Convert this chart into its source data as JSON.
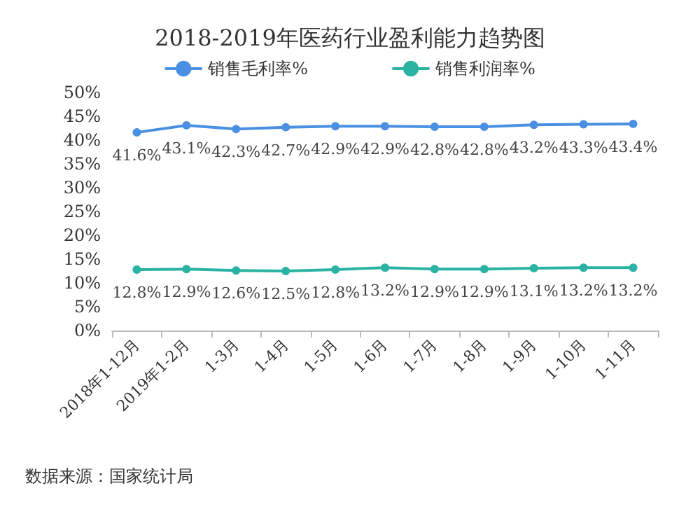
{
  "chart_data": {
    "type": "line",
    "title": "2018-2019年医药行业盈利能力趋势图",
    "categories": [
      "2018年1-12月",
      "2019年1-2月",
      "1-3月",
      "1-4月",
      "1-5月",
      "1-6月",
      "1-7月",
      "1-8月",
      "1-9月",
      "1-10月",
      "1-11月"
    ],
    "series": [
      {
        "name": "销售毛利率%",
        "color": "#4a90e2",
        "values": [
          41.6,
          43.1,
          42.3,
          42.7,
          42.9,
          42.9,
          42.8,
          42.8,
          43.2,
          43.3,
          43.4
        ],
        "value_labels": [
          "41.6%",
          "43.1%",
          "42.3%",
          "42.7%",
          "42.9%",
          "42.9%",
          "42.8%",
          "42.8%",
          "43.2%",
          "43.3%",
          "43.4%"
        ]
      },
      {
        "name": "销售利润率%",
        "color": "#2ab3a3",
        "values": [
          12.8,
          12.9,
          12.6,
          12.5,
          12.8,
          13.2,
          12.9,
          12.9,
          13.1,
          13.2,
          13.2
        ],
        "value_labels": [
          "12.8%",
          "12.9%",
          "12.6%",
          "12.5%",
          "12.8%",
          "13.2%",
          "12.9%",
          "12.9%",
          "13.1%",
          "13.2%",
          "13.2%"
        ]
      }
    ],
    "ylim": [
      0,
      50
    ],
    "yticks": [
      {
        "value": 0,
        "label": "0%"
      },
      {
        "value": 5,
        "label": "5%"
      },
      {
        "value": 10,
        "label": "10%"
      },
      {
        "value": 15,
        "label": "15%"
      },
      {
        "value": 20,
        "label": "20%"
      },
      {
        "value": 25,
        "label": "25%"
      },
      {
        "value": 30,
        "label": "30%"
      },
      {
        "value": 35,
        "label": "35%"
      },
      {
        "value": 40,
        "label": "40%"
      },
      {
        "value": 45,
        "label": "45%"
      },
      {
        "value": 50,
        "label": "50%"
      }
    ],
    "grid": false,
    "legend": "top",
    "marker": "circle",
    "line_style": "solid",
    "annotations": [
      "数据来源：国家统计局"
    ]
  }
}
